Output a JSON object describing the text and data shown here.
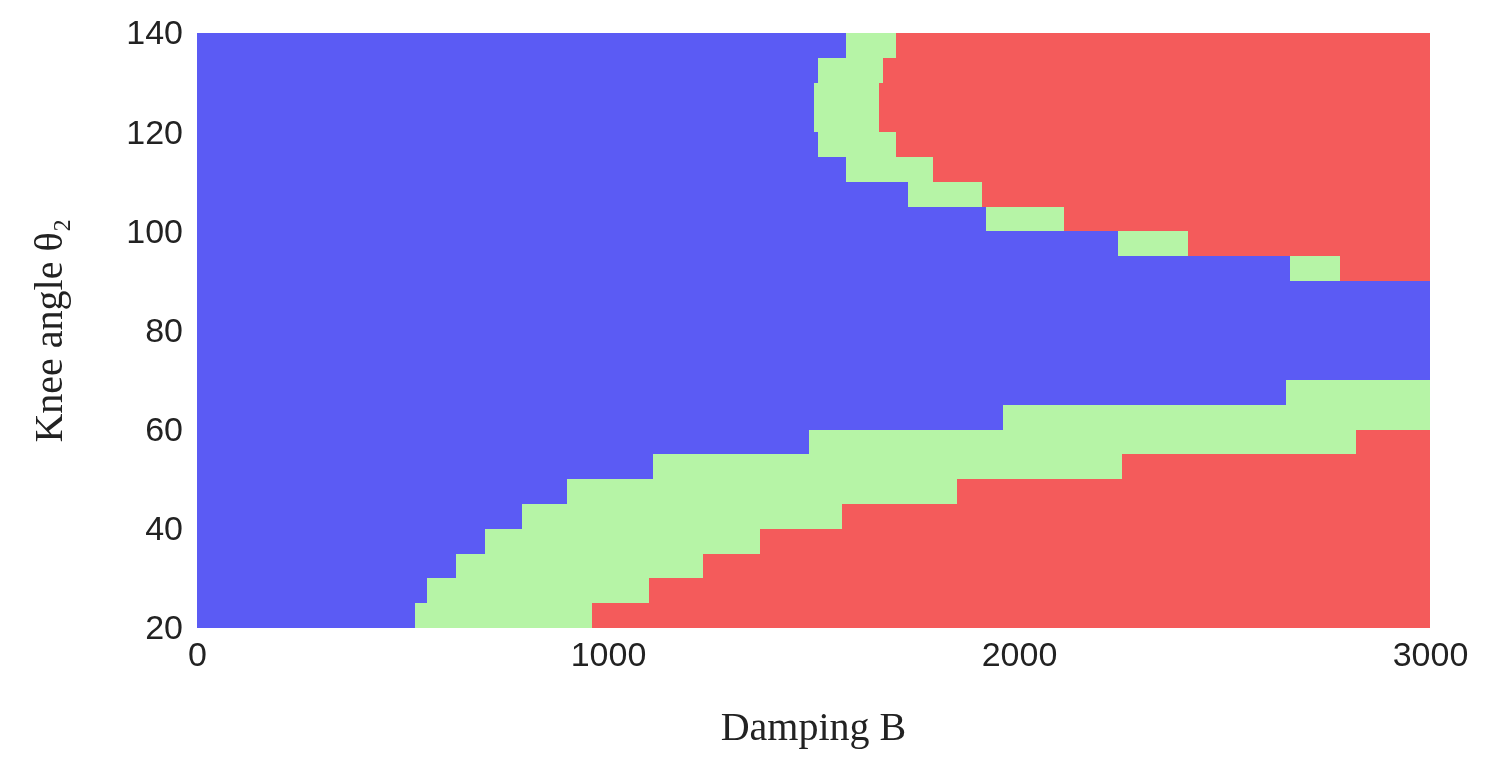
{
  "chart_data": {
    "type": "bar",
    "orientation": "horizontal",
    "stacked": true,
    "xlabel": "Damping B",
    "ylabel": "Knee angle θ₂",
    "x": [
      22.5,
      27.5,
      32.5,
      37.5,
      42.5,
      47.5,
      52.5,
      57.5,
      62.5,
      67.5,
      72.5,
      77.5,
      82.5,
      87.5,
      92.5,
      97.5,
      102.5,
      107.5,
      112.5,
      117.5,
      122.5,
      127.5,
      132.5,
      137.5
    ],
    "series": [
      {
        "color": "#5b5bf4",
        "values": [
          530,
          560,
          630,
          700,
          790,
          900,
          1110,
          1490,
          1960,
          2650,
          3000,
          3000,
          3000,
          3000,
          2660,
          2240,
          1920,
          1730,
          1580,
          1510,
          1500,
          1500,
          1510,
          1580
        ]
      },
      {
        "color": "#b6f4a6",
        "values": [
          430,
          540,
          600,
          670,
          780,
          950,
          1140,
          1330,
          1040,
          350,
          0,
          0,
          0,
          0,
          120,
          170,
          190,
          180,
          210,
          190,
          160,
          160,
          160,
          120
        ]
      },
      {
        "color": "#f45b5b",
        "values": [
          2040,
          1900,
          1770,
          1630,
          1430,
          1150,
          750,
          180,
          0,
          0,
          0,
          0,
          0,
          0,
          220,
          590,
          890,
          1090,
          1210,
          1300,
          1340,
          1340,
          1330,
          1300
        ]
      }
    ],
    "xlim": [
      0,
      3000
    ],
    "xticks": [
      0,
      1000,
      2000,
      3000
    ],
    "ylim": [
      20,
      140
    ],
    "yticks": [
      20,
      40,
      60,
      80,
      100,
      120,
      140
    ]
  }
}
